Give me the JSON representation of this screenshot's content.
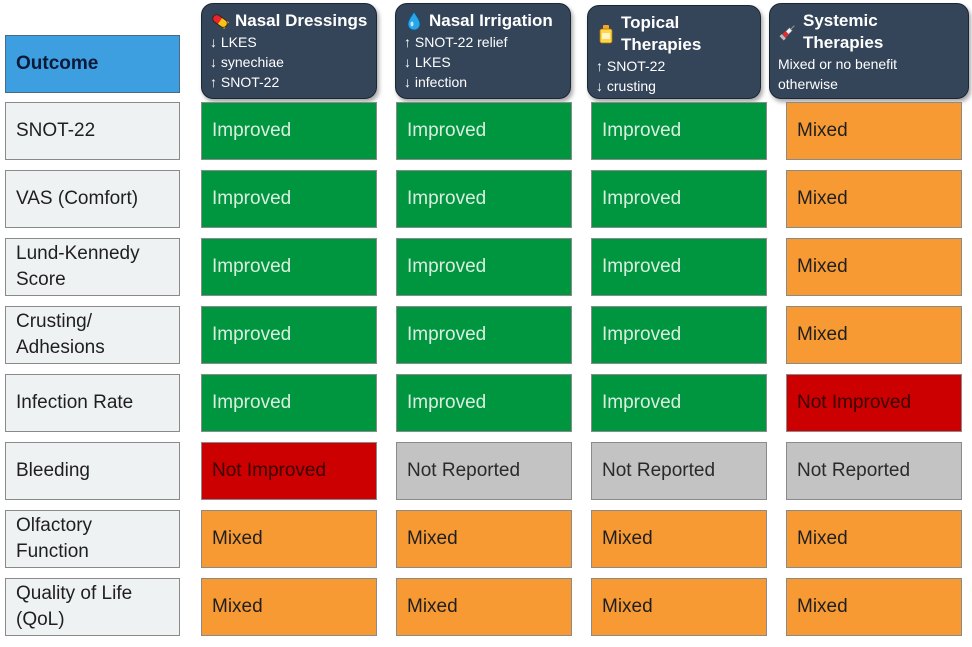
{
  "outcome_header": "Outcome",
  "colors": {
    "Improved": "#009640",
    "Mixed": "#f79a33",
    "Not Improved": "#cc0000",
    "Not Reported": "#c3c3c3",
    "header_dark": "#344459",
    "outcome_blue": "#3d9ee0"
  },
  "columns": [
    {
      "title": "Nasal Dressings",
      "icon": "pill-icon",
      "lines": [
        "↓ LKES",
        "↓ synechiae",
        "↑ SNOT-22"
      ]
    },
    {
      "title": "Nasal Irrigation",
      "icon": "water-drop-icon",
      "lines": [
        "↑ SNOT-22 relief",
        "↓ LKES",
        "↓ infection"
      ]
    },
    {
      "title": "Topical Therapies",
      "icon": "bottle-icon",
      "lines": [
        "↑ SNOT-22",
        "↓ crusting"
      ]
    },
    {
      "title": "Systemic Therapies",
      "icon": "syringe-icon",
      "lines": [
        "Mixed or no benefit",
        "otherwise"
      ]
    }
  ],
  "rows": [
    {
      "label": "SNOT-22",
      "values": [
        "Improved",
        "Improved",
        "Improved",
        "Mixed"
      ]
    },
    {
      "label": "VAS (Comfort)",
      "values": [
        "Improved",
        "Improved",
        "Improved",
        "Mixed"
      ]
    },
    {
      "label": "Lund-Kennedy\nScore",
      "values": [
        "Improved",
        "Improved",
        "Improved",
        "Mixed"
      ]
    },
    {
      "label": "Crusting/\nAdhesions",
      "values": [
        "Improved",
        "Improved",
        "Improved",
        "Mixed"
      ]
    },
    {
      "label": "Infection Rate",
      "values": [
        "Improved",
        "Improved",
        "Improved",
        "Not Improved"
      ]
    },
    {
      "label": "Bleeding",
      "values": [
        "Not Improved",
        "Not Reported",
        "Not Reported",
        "Not Reported"
      ]
    },
    {
      "label": "Olfactory\nFunction",
      "values": [
        "Mixed",
        "Mixed",
        "Mixed",
        "Mixed"
      ]
    },
    {
      "label": "Quality of Life\n(QoL)",
      "values": [
        "Mixed",
        "Mixed",
        "Mixed",
        "Mixed"
      ]
    }
  ]
}
